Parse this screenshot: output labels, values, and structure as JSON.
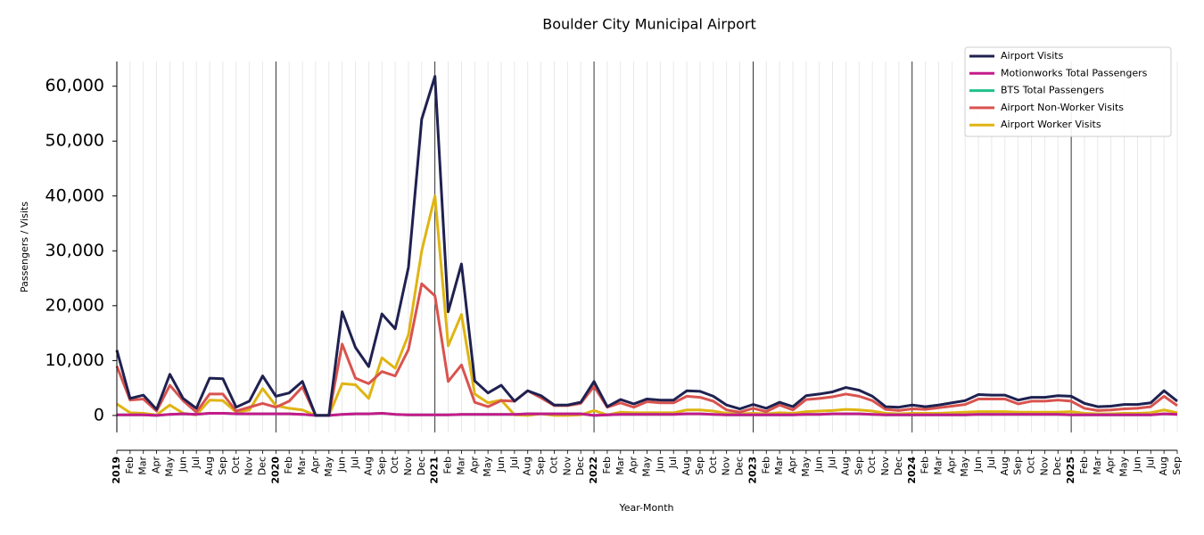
{
  "chart_data": {
    "type": "line",
    "title": "Boulder City Municipal Airport",
    "x_label": "Year-Month",
    "y_label": "Passengers / Visits",
    "categories": [
      "2019",
      "Feb",
      "Mar",
      "Apr",
      "May",
      "Jun",
      "Jul",
      "Aug",
      "Sep",
      "Oct",
      "Nov",
      "Dec",
      "2020",
      "Feb",
      "Mar",
      "Apr",
      "May",
      "Jun",
      "Jul",
      "Aug",
      "Sep",
      "Oct",
      "Nov",
      "Dec",
      "2021",
      "Feb",
      "Mar",
      "Apr",
      "May",
      "Jun",
      "Jul",
      "Aug",
      "Sep",
      "Oct",
      "Nov",
      "Dec",
      "2022",
      "Feb",
      "Mar",
      "Apr",
      "May",
      "Jun",
      "Jul",
      "Aug",
      "Sep",
      "Oct",
      "Nov",
      "Dec",
      "2023",
      "Feb",
      "Mar",
      "Apr",
      "May",
      "Jun",
      "Jul",
      "Aug",
      "Sep",
      "Oct",
      "Nov",
      "Dec",
      "2024",
      "Feb",
      "Mar",
      "Apr",
      "May",
      "Jun",
      "Jul",
      "Aug",
      "Sep",
      "Oct",
      "Nov",
      "Dec",
      "2025",
      "Feb",
      "Mar",
      "Apr",
      "May",
      "Jun",
      "Jul",
      "Aug",
      "Sep"
    ],
    "ylim": [
      -3100,
      64500
    ],
    "yticks": [
      0,
      {
        "value": 10000,
        "label": "10,000"
      },
      {
        "value": 20000,
        "label": "20,000"
      },
      {
        "value": 30000,
        "label": "30,000"
      },
      {
        "value": 40000,
        "label": "40,000"
      },
      {
        "value": 50000,
        "label": "50,000"
      },
      {
        "value": 60000,
        "label": "60,000"
      }
    ],
    "grid": true,
    "legend": "upper right",
    "series": [
      {
        "name": "Airport Visits",
        "color": "#1f2150",
        "values": [
          11900,
          3100,
          3700,
          1100,
          7500,
          3100,
          1300,
          6800,
          6700,
          1500,
          2600,
          7200,
          3500,
          4100,
          6200,
          0,
          0,
          18900,
          12400,
          8900,
          18500,
          15800,
          27000,
          54000,
          61800,
          18900,
          27600,
          6300,
          4100,
          5500,
          2600,
          4500,
          3600,
          1900,
          1900,
          2400,
          6200,
          1600,
          2900,
          2100,
          3000,
          2800,
          2800,
          4500,
          4400,
          3500,
          1900,
          1200,
          2000,
          1300,
          2400,
          1600,
          3600,
          3900,
          4300,
          5100,
          4600,
          3500,
          1600,
          1500,
          1900,
          1600,
          1900,
          2300,
          2700,
          3800,
          3700,
          3700,
          2800,
          3300,
          3300,
          3600,
          3500,
          2200,
          1600,
          1700,
          2000,
          2000,
          2300,
          4500,
          2600
        ]
      },
      {
        "name": "Motionworks Total Passengers",
        "color": "#c51b8a",
        "values": [
          100,
          100,
          100,
          0,
          200,
          300,
          200,
          400,
          400,
          300,
          300,
          300,
          300,
          300,
          200,
          0,
          0,
          200,
          300,
          300,
          400,
          200,
          100,
          100,
          100,
          100,
          200,
          200,
          200,
          200,
          200,
          300,
          300,
          300,
          300,
          300,
          0,
          100,
          200,
          200,
          200,
          200,
          200,
          300,
          300,
          200,
          100,
          100,
          100,
          100,
          100,
          100,
          200,
          200,
          300,
          300,
          300,
          200,
          100,
          100,
          100,
          100,
          100,
          100,
          100,
          200,
          200,
          200,
          200,
          200,
          200,
          200,
          100,
          100,
          100,
          100,
          100,
          100,
          100,
          300,
          200
        ]
      },
      {
        "name": "BTS Total Passengers",
        "color": "#20c08a",
        "values": [
          100,
          100,
          100,
          0,
          200,
          300,
          200,
          400,
          400,
          300,
          300,
          300,
          300,
          300,
          200,
          0,
          0,
          200,
          300,
          300,
          400,
          200,
          100,
          100,
          100,
          100,
          200,
          200,
          200,
          200,
          200,
          300,
          300,
          300,
          300,
          300,
          0,
          100,
          200,
          200,
          200,
          200,
          200,
          300,
          300,
          200,
          100,
          100,
          100,
          100,
          100,
          100,
          200,
          200,
          300,
          300,
          300,
          200,
          100,
          100,
          100,
          100,
          100,
          100,
          100,
          200,
          200,
          200,
          200,
          200,
          200,
          200,
          100,
          100,
          100,
          100,
          100,
          100,
          100,
          300,
          200
        ]
      },
      {
        "name": "Airport Non-Worker Visits",
        "color": "#d9534f",
        "values": [
          9000,
          2800,
          3000,
          800,
          5500,
          2700,
          600,
          3900,
          3900,
          800,
          1500,
          2200,
          1500,
          2600,
          5200,
          0,
          0,
          13000,
          6800,
          5800,
          8000,
          7200,
          12000,
          24000,
          21800,
          6200,
          9200,
          2400,
          1600,
          2700,
          2600,
          4500,
          3200,
          1800,
          1800,
          2200,
          5300,
          1500,
          2300,
          1500,
          2500,
          2300,
          2300,
          3500,
          3300,
          2600,
          1000,
          600,
          1300,
          700,
          1900,
          1000,
          2900,
          3100,
          3400,
          3900,
          3500,
          2700,
          1100,
          900,
          1200,
          1100,
          1400,
          1700,
          2000,
          3000,
          3000,
          3000,
          2100,
          2600,
          2600,
          2800,
          2600,
          1300,
          900,
          1000,
          1200,
          1300,
          1600,
          3500,
          1800
        ]
      },
      {
        "name": "Airport Worker Visits",
        "color": "#e0b412",
        "values": [
          2100,
          500,
          400,
          100,
          1900,
          400,
          100,
          2800,
          2700,
          600,
          1000,
          4900,
          1800,
          1300,
          1000,
          0,
          0,
          5800,
          5600,
          3100,
          10500,
          8600,
          14700,
          30000,
          40000,
          12700,
          18400,
          3900,
          2300,
          2800,
          100,
          0,
          300,
          0,
          0,
          100,
          900,
          100,
          600,
          500,
          500,
          500,
          500,
          1000,
          1000,
          800,
          400,
          300,
          400,
          300,
          500,
          400,
          700,
          800,
          900,
          1100,
          1000,
          800,
          400,
          300,
          400,
          400,
          400,
          500,
          600,
          700,
          700,
          700,
          600,
          600,
          600,
          600,
          700,
          400,
          300,
          300,
          400,
          400,
          500,
          1000,
          500
        ]
      }
    ]
  }
}
